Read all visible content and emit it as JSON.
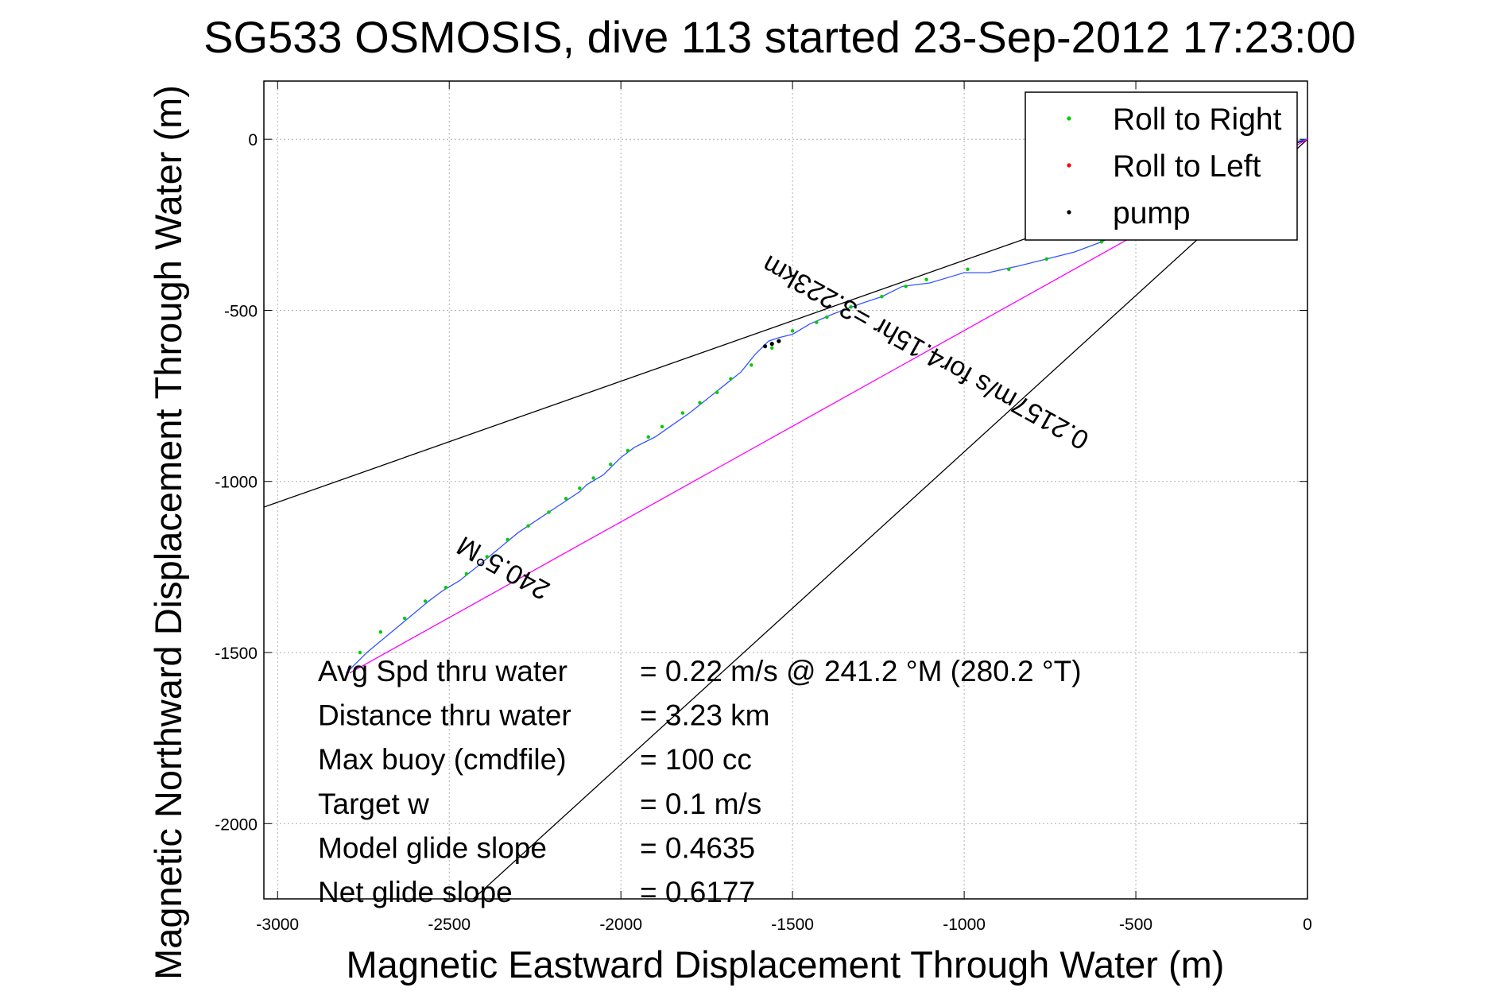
{
  "chart_data": {
    "type": "line",
    "title": "SG533 OSMOSIS, dive 113 started 23-Sep-2012 17:23:00",
    "xlabel": "Magnetic Eastward Displacement Through Water (m)",
    "ylabel": "Magnetic Northward Displacement Through Water (m)",
    "xlim": [
      -3040,
      0
    ],
    "ylim": [
      -2220,
      170
    ],
    "xticks": [
      -3000,
      -2500,
      -2000,
      -1500,
      -1000,
      -500,
      0
    ],
    "yticks": [
      0,
      -500,
      -1000,
      -1500,
      -2000
    ],
    "grid": true,
    "legend_position": "top-right",
    "legend": [
      {
        "label": "Roll to Right",
        "color": "#00cc00"
      },
      {
        "label": "Roll to Left",
        "color": "#ff0000"
      },
      {
        "label": "pump",
        "color": "#000000"
      }
    ],
    "series": [
      {
        "color": "#3355ff",
        "x": [
          0,
          -50,
          -120,
          -200,
          -280,
          -360,
          -440,
          -520,
          -600,
          -680,
          -760,
          -840,
          -930,
          -1000,
          -1050,
          -1100,
          -1180,
          -1240,
          -1300,
          -1380,
          -1450,
          -1500,
          -1540,
          -1570,
          -1610,
          -1650,
          -1700,
          -1750,
          -1800,
          -1850,
          -1900,
          -1960,
          -2000,
          -2050,
          -2100,
          -2120,
          -2180,
          -2240,
          -2300,
          -2360,
          -2420,
          -2470,
          -2520,
          -2560,
          -2620,
          -2680,
          -2740,
          -2800
        ],
        "y": [
          0,
          -10,
          -40,
          -80,
          -120,
          -160,
          -210,
          -260,
          -300,
          -330,
          -350,
          -370,
          -390,
          -390,
          -405,
          -420,
          -430,
          -460,
          -480,
          -510,
          -540,
          -570,
          -580,
          -590,
          -630,
          -680,
          -720,
          -760,
          -800,
          -835,
          -870,
          -900,
          -930,
          -980,
          -1010,
          -1030,
          -1070,
          -1110,
          -1150,
          -1200,
          -1250,
          -1290,
          -1320,
          -1350,
          -1400,
          -1450,
          -1500,
          -1560
        ]
      },
      {
        "color": "#ff00ff",
        "x": [
          0,
          -2790
        ],
        "y": [
          0,
          -1560
        ]
      }
    ],
    "roll_to_right_points": {
      "x": [
        -120,
        -280,
        -440,
        -600,
        -760,
        -870,
        -990,
        -1110,
        -1170,
        -1240,
        -1330,
        -1400,
        -1430,
        -1500,
        -1560,
        -1620,
        -1680,
        -1720,
        -1770,
        -1820,
        -1880,
        -1920,
        -1980,
        -2030,
        -2080,
        -2120,
        -2160,
        -2210,
        -2270,
        -2330,
        -2390,
        -2450,
        -2510,
        -2570,
        -2630,
        -2700,
        -2760
      ],
      "y": [
        -40,
        -120,
        -210,
        -300,
        -350,
        -380,
        -380,
        -410,
        -430,
        -460,
        -490,
        -520,
        -535,
        -560,
        -610,
        -660,
        -700,
        -740,
        -770,
        -800,
        -840,
        -870,
        -910,
        -950,
        -990,
        -1020,
        -1050,
        -1090,
        -1130,
        -1170,
        -1220,
        -1270,
        -1310,
        -1350,
        -1400,
        -1440,
        -1500
      ]
    },
    "pump_points": {
      "x": [
        -1580,
        -1560,
        -1540
      ],
      "y": [
        -605,
        -598,
        -590
      ]
    },
    "cone_lines": [
      {
        "color": "#000000",
        "x": [
          0,
          -3040
        ],
        "y": [
          0,
          -1075
        ]
      },
      {
        "color": "#000000",
        "x": [
          0,
          -2430
        ],
        "y": [
          0,
          -2220
        ]
      }
    ],
    "annotations": [
      {
        "text": "240.5°M",
        "x": -2330,
        "y": -1230,
        "angle": 209.2
      },
      {
        "text": "0.2157m/s for4.15hr =3.223km",
        "x": -1100,
        "y": -600,
        "angle": 209.2
      }
    ],
    "stats": [
      {
        "label": "Avg Spd thru water",
        "value": "=  0.22 m/s @ 241.2 °M (280.2 °T)"
      },
      {
        "label": "Distance thru water",
        "value": "=  3.23 km"
      },
      {
        "label": "Max buoy (cmdfile)",
        "value": "= 100 cc"
      },
      {
        "label": "Target w",
        "value": "= 0.1 m/s"
      },
      {
        "label": "Model glide slope",
        "value": "= 0.4635"
      },
      {
        "label": "Net glide slope",
        "value": "= 0.6177"
      }
    ]
  }
}
